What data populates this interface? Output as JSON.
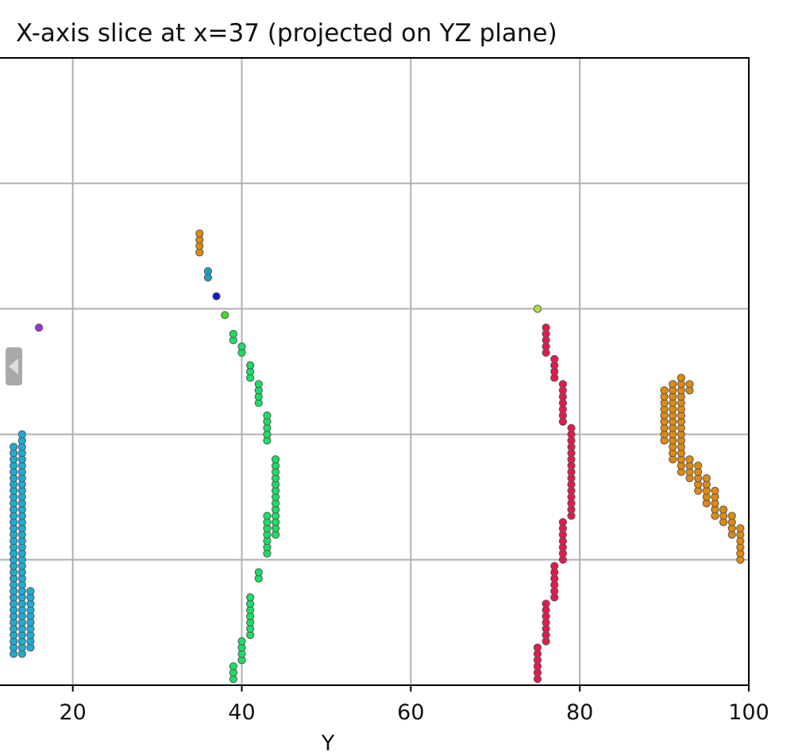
{
  "chart_data": {
    "type": "scatter",
    "title": "X-axis slice at x=37 (projected on YZ plane)",
    "xlabel": "Y",
    "ylabel": "",
    "xlim": [
      11.2,
      100
    ],
    "ylim": [
      0,
      100
    ],
    "x_ticks": [
      20,
      40,
      60,
      80,
      100
    ],
    "y_gridlines": [
      20,
      40,
      60,
      80
    ],
    "grid": true,
    "series": [
      {
        "color": "#1aaed6",
        "points": [
          [
            13,
            5
          ],
          [
            13,
            6
          ],
          [
            13,
            7
          ],
          [
            13,
            8
          ],
          [
            13,
            9
          ],
          [
            13,
            10
          ],
          [
            13,
            11
          ],
          [
            13,
            12
          ],
          [
            13,
            13
          ],
          [
            13,
            14
          ],
          [
            13,
            15
          ],
          [
            13,
            16
          ],
          [
            13,
            17
          ],
          [
            13,
            18
          ],
          [
            13,
            19
          ],
          [
            13,
            20
          ],
          [
            13,
            21
          ],
          [
            13,
            22
          ],
          [
            13,
            23
          ],
          [
            13,
            24
          ],
          [
            13,
            25
          ],
          [
            13,
            26
          ],
          [
            13,
            27
          ],
          [
            13,
            28
          ],
          [
            13,
            29
          ],
          [
            13,
            30
          ],
          [
            13,
            31
          ],
          [
            13,
            32
          ],
          [
            13,
            33
          ],
          [
            13,
            34
          ],
          [
            13,
            35
          ],
          [
            13,
            36
          ],
          [
            13,
            37
          ],
          [
            13,
            38
          ],
          [
            14,
            5
          ],
          [
            14,
            6
          ],
          [
            14,
            7
          ],
          [
            14,
            8
          ],
          [
            14,
            9
          ],
          [
            14,
            10
          ],
          [
            14,
            11
          ],
          [
            14,
            12
          ],
          [
            14,
            13
          ],
          [
            14,
            14
          ],
          [
            14,
            15
          ],
          [
            14,
            16
          ],
          [
            14,
            17
          ],
          [
            14,
            18
          ],
          [
            14,
            19
          ],
          [
            14,
            20
          ],
          [
            14,
            21
          ],
          [
            14,
            22
          ],
          [
            14,
            23
          ],
          [
            14,
            24
          ],
          [
            14,
            25
          ],
          [
            14,
            26
          ],
          [
            14,
            27
          ],
          [
            14,
            28
          ],
          [
            14,
            29
          ],
          [
            14,
            30
          ],
          [
            14,
            31
          ],
          [
            14,
            32
          ],
          [
            14,
            33
          ],
          [
            14,
            34
          ],
          [
            14,
            35
          ],
          [
            14,
            36
          ],
          [
            14,
            37
          ],
          [
            14,
            38
          ],
          [
            14,
            39
          ],
          [
            14,
            40
          ],
          [
            15,
            6
          ],
          [
            15,
            7
          ],
          [
            15,
            8
          ],
          [
            15,
            9
          ],
          [
            15,
            10
          ],
          [
            15,
            11
          ],
          [
            15,
            12
          ],
          [
            15,
            13
          ],
          [
            15,
            14
          ],
          [
            15,
            15
          ]
        ]
      },
      {
        "color": "#9b30d9",
        "points": [
          [
            16,
            57
          ]
        ]
      },
      {
        "color": "#19e065",
        "points": [
          [
            39,
            1
          ],
          [
            39,
            2
          ],
          [
            39,
            3
          ],
          [
            40,
            4
          ],
          [
            40,
            5
          ],
          [
            40,
            6
          ],
          [
            40,
            7
          ],
          [
            41,
            8
          ],
          [
            41,
            9
          ],
          [
            41,
            10
          ],
          [
            41,
            11
          ],
          [
            41,
            12
          ],
          [
            41,
            13
          ],
          [
            41,
            14
          ],
          [
            42,
            17
          ],
          [
            42,
            18
          ],
          [
            43,
            21
          ],
          [
            43,
            22
          ],
          [
            43,
            23
          ],
          [
            43,
            24
          ],
          [
            43,
            25
          ],
          [
            43,
            26
          ],
          [
            43,
            27
          ],
          [
            44,
            24
          ],
          [
            44,
            25
          ],
          [
            44,
            26
          ],
          [
            44,
            27
          ],
          [
            44,
            28
          ],
          [
            44,
            29
          ],
          [
            44,
            30
          ],
          [
            44,
            31
          ],
          [
            44,
            32
          ],
          [
            44,
            33
          ],
          [
            44,
            34
          ],
          [
            44,
            35
          ],
          [
            44,
            36
          ],
          [
            43,
            39
          ],
          [
            43,
            40
          ],
          [
            43,
            41
          ],
          [
            43,
            42
          ],
          [
            43,
            43
          ],
          [
            42,
            45
          ],
          [
            42,
            46
          ],
          [
            42,
            47
          ],
          [
            42,
            48
          ],
          [
            41,
            49
          ],
          [
            41,
            50
          ],
          [
            41,
            51
          ],
          [
            40,
            53
          ],
          [
            40,
            54
          ],
          [
            39,
            55
          ],
          [
            39,
            56
          ]
        ]
      },
      {
        "color": "#3ee022",
        "points": [
          [
            38,
            59
          ]
        ]
      },
      {
        "color": "#1717d0",
        "points": [
          [
            37,
            62
          ]
        ]
      },
      {
        "color": "#1aa3c0",
        "points": [
          [
            36,
            65
          ],
          [
            36,
            66
          ]
        ]
      },
      {
        "color": "#e08a0e",
        "points": [
          [
            35,
            69
          ],
          [
            35,
            70
          ],
          [
            35,
            71
          ],
          [
            35,
            72
          ]
        ]
      },
      {
        "color": "#aee23a",
        "points": [
          [
            75,
            60
          ]
        ]
      },
      {
        "color": "#e8184d",
        "points": [
          [
            75,
            1
          ],
          [
            75,
            2
          ],
          [
            75,
            3
          ],
          [
            75,
            4
          ],
          [
            75,
            5
          ],
          [
            75,
            6
          ],
          [
            76,
            7
          ],
          [
            76,
            8
          ],
          [
            76,
            9
          ],
          [
            76,
            10
          ],
          [
            76,
            11
          ],
          [
            76,
            12
          ],
          [
            76,
            13
          ],
          [
            77,
            14
          ],
          [
            77,
            15
          ],
          [
            77,
            16
          ],
          [
            77,
            17
          ],
          [
            77,
            18
          ],
          [
            77,
            19
          ],
          [
            78,
            20
          ],
          [
            78,
            21
          ],
          [
            78,
            22
          ],
          [
            78,
            23
          ],
          [
            78,
            24
          ],
          [
            78,
            25
          ],
          [
            78,
            26
          ],
          [
            79,
            27
          ],
          [
            79,
            28
          ],
          [
            79,
            29
          ],
          [
            79,
            30
          ],
          [
            79,
            31
          ],
          [
            79,
            32
          ],
          [
            79,
            33
          ],
          [
            79,
            34
          ],
          [
            79,
            35
          ],
          [
            79,
            36
          ],
          [
            79,
            37
          ],
          [
            79,
            38
          ],
          [
            79,
            39
          ],
          [
            79,
            40
          ],
          [
            79,
            41
          ],
          [
            78,
            42
          ],
          [
            78,
            43
          ],
          [
            78,
            44
          ],
          [
            78,
            45
          ],
          [
            78,
            46
          ],
          [
            78,
            47
          ],
          [
            78,
            48
          ],
          [
            77,
            49
          ],
          [
            77,
            50
          ],
          [
            77,
            51
          ],
          [
            77,
            52
          ],
          [
            76,
            53
          ],
          [
            76,
            54
          ],
          [
            76,
            55
          ],
          [
            76,
            56
          ],
          [
            76,
            57
          ]
        ]
      },
      {
        "color": "#e08a0e",
        "points": [
          [
            90,
            39
          ],
          [
            90,
            40
          ],
          [
            90,
            41
          ],
          [
            90,
            42
          ],
          [
            90,
            43
          ],
          [
            90,
            44
          ],
          [
            90,
            45
          ],
          [
            90,
            46
          ],
          [
            90,
            47
          ],
          [
            91,
            36
          ],
          [
            91,
            37
          ],
          [
            91,
            38
          ],
          [
            91,
            39
          ],
          [
            91,
            40
          ],
          [
            91,
            41
          ],
          [
            91,
            42
          ],
          [
            91,
            43
          ],
          [
            91,
            44
          ],
          [
            91,
            45
          ],
          [
            91,
            46
          ],
          [
            91,
            47
          ],
          [
            91,
            48
          ],
          [
            92,
            34
          ],
          [
            92,
            35
          ],
          [
            92,
            36
          ],
          [
            92,
            37
          ],
          [
            92,
            38
          ],
          [
            92,
            39
          ],
          [
            92,
            40
          ],
          [
            92,
            41
          ],
          [
            92,
            42
          ],
          [
            92,
            43
          ],
          [
            92,
            44
          ],
          [
            92,
            45
          ],
          [
            92,
            46
          ],
          [
            92,
            47
          ],
          [
            92,
            48
          ],
          [
            92,
            49
          ],
          [
            93,
            33
          ],
          [
            93,
            34
          ],
          [
            93,
            35
          ],
          [
            93,
            36
          ],
          [
            93,
            47
          ],
          [
            93,
            48
          ],
          [
            94,
            31
          ],
          [
            94,
            32
          ],
          [
            94,
            33
          ],
          [
            94,
            34
          ],
          [
            94,
            35
          ],
          [
            95,
            29
          ],
          [
            95,
            30
          ],
          [
            95,
            31
          ],
          [
            95,
            32
          ],
          [
            95,
            33
          ],
          [
            96,
            27
          ],
          [
            96,
            28
          ],
          [
            96,
            29
          ],
          [
            96,
            30
          ],
          [
            96,
            31
          ],
          [
            97,
            26
          ],
          [
            97,
            27
          ],
          [
            97,
            28
          ],
          [
            98,
            24
          ],
          [
            98,
            25
          ],
          [
            98,
            26
          ],
          [
            98,
            27
          ],
          [
            99,
            20
          ],
          [
            99,
            21
          ],
          [
            99,
            22
          ],
          [
            99,
            23
          ],
          [
            99,
            24
          ],
          [
            99,
            25
          ]
        ]
      }
    ]
  },
  "controls": {
    "collapse_handle_icon": "chevron-left-icon"
  }
}
